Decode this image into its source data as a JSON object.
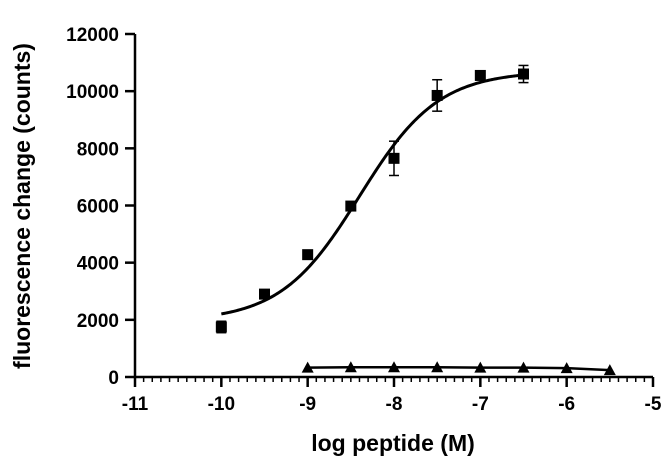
{
  "chart_data": {
    "type": "scatter",
    "title": "",
    "xlabel": "log peptide (M)",
    "ylabel": "fluorescence change (counts)",
    "xlim": [
      -11,
      -5
    ],
    "ylim": [
      0,
      12000
    ],
    "x_ticks": [
      -11,
      -10,
      -9,
      -8,
      -7,
      -6,
      -5
    ],
    "x_tick_labels": [
      "-11",
      "-10",
      "-9",
      "-8",
      "-7",
      "-6",
      "-5"
    ],
    "y_ticks": [
      0,
      2000,
      4000,
      6000,
      8000,
      10000,
      12000
    ],
    "y_tick_labels": [
      "0",
      "2000",
      "4000",
      "6000",
      "8000",
      "10000",
      "12000"
    ],
    "x_minor_tick_step": 0.1,
    "grid": false,
    "legend": "none",
    "series": [
      {
        "marker": "square",
        "color": "#000000",
        "x": [
          -10,
          -9.5,
          -9,
          -8.5,
          -8,
          -7.5,
          -7,
          -6.5
        ],
        "y": [
          1750,
          2900,
          4280,
          5980,
          7650,
          9850,
          10550,
          10600
        ],
        "error": [
          200,
          100,
          100,
          80,
          600,
          550,
          150,
          300
        ],
        "fit": {
          "type": "sigmoidal dose-response",
          "bottom": 1950,
          "top": 10700,
          "log_ec50": -8.4,
          "hill_slope": 0.95,
          "x_range": [
            -10,
            -6.5
          ]
        }
      },
      {
        "marker": "triangle",
        "color": "#000000",
        "x": [
          -9,
          -8.5,
          -8,
          -7.5,
          -7,
          -6.5,
          -6,
          -5.5
        ],
        "y": [
          330,
          340,
          340,
          340,
          330,
          330,
          310,
          240
        ],
        "line": "connected"
      }
    ]
  }
}
